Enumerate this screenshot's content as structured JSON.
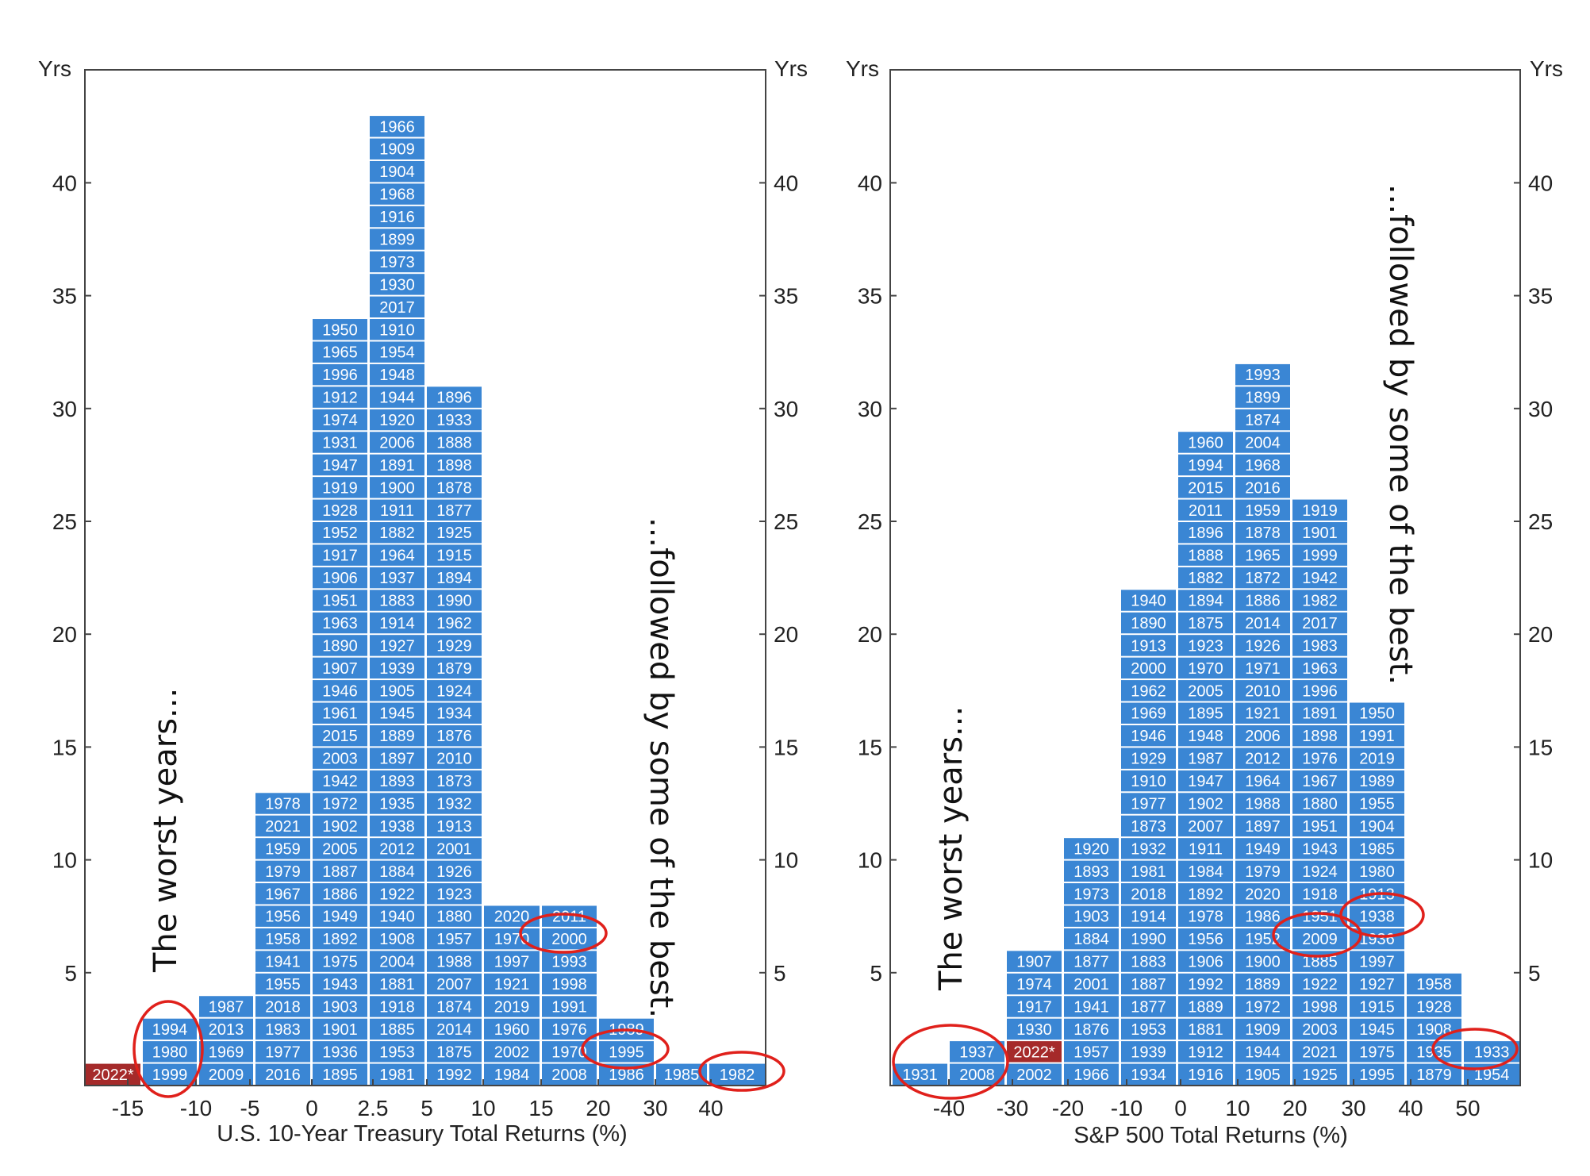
{
  "chart_data": [
    {
      "type": "bar",
      "xlabel": "U.S. 10-Year Treasury Total Returns (%)",
      "ylabel": "Yrs",
      "ylabel_right": "Yrs",
      "ylim": [
        0,
        45
      ],
      "yticks": [
        5,
        10,
        15,
        20,
        25,
        30,
        35,
        40
      ],
      "x_tick_labels": [
        "-15",
        "-10",
        "-5",
        "0",
        "2.5",
        "5",
        "10",
        "15",
        "20",
        "30",
        "40"
      ],
      "annotation_left": "The worst years...",
      "annotation_right": "...followed by some of the best.",
      "highlight_color": "#a52a2a",
      "bar_color": "#3a86d4",
      "bins": [
        {
          "years": [
            "2022*"
          ],
          "highlight": [
            "2022*"
          ]
        },
        {
          "years": [
            "1999",
            "1980",
            "1994"
          ],
          "highlight": []
        },
        {
          "years": [
            "2009",
            "1969",
            "2013",
            "1987"
          ],
          "highlight": []
        },
        {
          "years": [
            "2016",
            "1977",
            "1983",
            "2018",
            "1955",
            "1941",
            "1958",
            "1956",
            "1967",
            "1979",
            "1959",
            "2021",
            "1978"
          ],
          "highlight": []
        },
        {
          "years": [
            "1895",
            "1936",
            "1901",
            "1903",
            "1943",
            "1975",
            "1892",
            "1949",
            "1886",
            "1887",
            "2005",
            "1902",
            "1972",
            "1942",
            "2003",
            "2015",
            "1961",
            "1946",
            "1907",
            "1890",
            "1963",
            "1951",
            "1906",
            "1917",
            "1952",
            "1928",
            "1919",
            "1947",
            "1931",
            "1974",
            "1912",
            "1996",
            "1965",
            "1950"
          ],
          "highlight": []
        },
        {
          "years": [
            "1981",
            "1953",
            "1885",
            "1918",
            "1881",
            "2004",
            "1908",
            "1940",
            "1922",
            "1884",
            "2012",
            "1938",
            "1935",
            "1893",
            "1897",
            "1889",
            "1945",
            "1905",
            "1939",
            "1927",
            "1914",
            "1883",
            "1937",
            "1964",
            "1882",
            "1911",
            "1900",
            "1891",
            "2006",
            "1920",
            "1944",
            "1948",
            "1954",
            "1910",
            "2017",
            "1930",
            "1973",
            "1899",
            "1916",
            "1968",
            "1904",
            "1909",
            "1966"
          ],
          "highlight": []
        },
        {
          "years": [
            "1992",
            "1875",
            "2014",
            "1874",
            "2007",
            "1988",
            "1957",
            "1880",
            "1923",
            "1926",
            "2001",
            "1913",
            "1932",
            "1873",
            "2010",
            "1876",
            "1934",
            "1924",
            "1879",
            "1929",
            "1962",
            "1990",
            "1894",
            "1915",
            "1925",
            "1877",
            "1878",
            "1898",
            "1888",
            "1933",
            "1896"
          ],
          "highlight": []
        },
        {
          "years": [
            "1984",
            "2002",
            "1960",
            "2019",
            "1921",
            "1997",
            "1970",
            "2020"
          ],
          "highlight": []
        },
        {
          "years": [
            "2008",
            "1970",
            "1976",
            "1991",
            "1998",
            "1993",
            "2000",
            "2011"
          ],
          "highlight": []
        },
        {
          "years": [
            "1986",
            "1995",
            "1989"
          ],
          "highlight": []
        },
        {
          "years": [
            "1985"
          ],
          "highlight": []
        },
        {
          "years": [
            "1982"
          ],
          "highlight": []
        }
      ]
    },
    {
      "type": "bar",
      "xlabel": "S&P 500 Total Returns (%)",
      "ylabel": "Yrs",
      "ylabel_right": "Yrs",
      "ylim": [
        0,
        45
      ],
      "yticks": [
        5,
        10,
        15,
        20,
        25,
        30,
        35,
        40
      ],
      "x_tick_labels": [
        "-40",
        "-30",
        "-20",
        "-10",
        "0",
        "10",
        "20",
        "30",
        "40",
        "50"
      ],
      "annotation_left": "The worst years...",
      "annotation_right": "...followed by some of the best.",
      "highlight_color": "#a52a2a",
      "bar_color": "#3a86d4",
      "bins": [
        {
          "years": [
            "1931"
          ],
          "highlight": []
        },
        {
          "years": [
            "2008",
            "1937"
          ],
          "highlight": []
        },
        {
          "years": [
            "2002",
            "2022*",
            "1930",
            "1917",
            "1974",
            "1907"
          ],
          "highlight": [
            "2022*"
          ]
        },
        {
          "years": [
            "1966",
            "1957",
            "1876",
            "1941",
            "2001",
            "1877",
            "1884",
            "1903",
            "1973",
            "1893",
            "1920"
          ],
          "highlight": []
        },
        {
          "years": [
            "1934",
            "1939",
            "1953",
            "1877",
            "1887",
            "1883",
            "1990",
            "1914",
            "2018",
            "1981",
            "1932",
            "1873",
            "1977",
            "1910",
            "1929",
            "1946",
            "1969",
            "1962",
            "2000",
            "1913",
            "1890",
            "1940"
          ],
          "highlight": []
        },
        {
          "years": [
            "1916",
            "1912",
            "1881",
            "1889",
            "1992",
            "1906",
            "1956",
            "1978",
            "1892",
            "1984",
            "1911",
            "2007",
            "1902",
            "1947",
            "1987",
            "1948",
            "1895",
            "2005",
            "1970",
            "1923",
            "1875",
            "1894",
            "1882",
            "1888",
            "1896",
            "2011",
            "2015",
            "1994",
            "1960"
          ],
          "highlight": []
        },
        {
          "years": [
            "1905",
            "1944",
            "1909",
            "1972",
            "1889",
            "1900",
            "1952",
            "1986",
            "2020",
            "1979",
            "1949",
            "1897",
            "1988",
            "1964",
            "2012",
            "2006",
            "1921",
            "2010",
            "1971",
            "1926",
            "2014",
            "1886",
            "1872",
            "1965",
            "1878",
            "1959",
            "2016",
            "1968",
            "2004",
            "1874",
            "1899",
            "1993"
          ],
          "highlight": []
        },
        {
          "years": [
            "1925",
            "2021",
            "2003",
            "1998",
            "1922",
            "1885",
            "2009",
            "1951",
            "1918",
            "1924",
            "1943",
            "1951",
            "1880",
            "1967",
            "1976",
            "1898",
            "1891",
            "1996",
            "1963",
            "1983",
            "2017",
            "1982",
            "1942",
            "1999",
            "1901",
            "1919"
          ],
          "highlight": []
        },
        {
          "years": [
            "1995",
            "1975",
            "1945",
            "1915",
            "1927",
            "1997",
            "1936",
            "1938",
            "1913",
            "1980",
            "1985",
            "1904",
            "1955",
            "1989",
            "2019",
            "1991",
            "1950"
          ],
          "highlight": []
        },
        {
          "years": [
            "1879",
            "1935",
            "1908",
            "1928",
            "1958"
          ],
          "highlight": []
        },
        {
          "years": [
            "1954",
            "1933"
          ],
          "highlight": []
        }
      ]
    }
  ]
}
